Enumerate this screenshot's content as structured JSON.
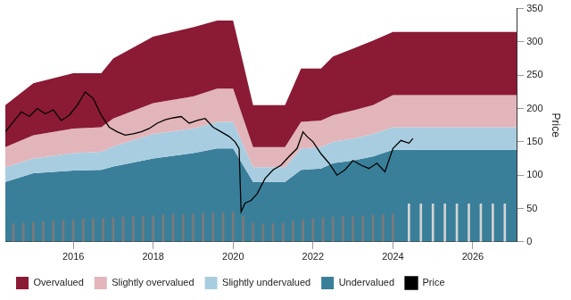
{
  "chart_data": {
    "type": "line",
    "y_label": "Price",
    "xlim": [
      2014.3,
      2027.1
    ],
    "xticks": [
      2016,
      2018,
      2020,
      2022,
      2024,
      2026
    ],
    "ylim": [
      0,
      350
    ],
    "yticks": [
      0,
      50,
      100,
      150,
      200,
      250,
      300,
      350
    ],
    "grid": false,
    "legend": "bottom-left",
    "series": [
      {
        "name": "Overvalued",
        "type": "area",
        "color": "#8b1a35",
        "x": [
          2014.3,
          2015.0,
          2016.0,
          2016.7,
          2017.0,
          2018.0,
          2019.0,
          2019.6,
          2020.0,
          2020.5,
          2021.3,
          2021.7,
          2022.2,
          2022.5,
          2023.0,
          2023.5,
          2024.0,
          2027.1
        ],
        "values": [
          205,
          238,
          253,
          253,
          275,
          308,
          322,
          332,
          332,
          205,
          205,
          260,
          260,
          278,
          290,
          302,
          315,
          315
        ]
      },
      {
        "name": "Slightly overvalued",
        "type": "area",
        "color": "#e2b5ba",
        "x": [
          2014.3,
          2015.0,
          2016.0,
          2016.7,
          2017.0,
          2018.0,
          2019.0,
          2019.6,
          2020.0,
          2020.5,
          2021.3,
          2021.7,
          2022.2,
          2022.5,
          2023.0,
          2023.5,
          2024.0,
          2027.1
        ],
        "values": [
          142,
          160,
          170,
          172,
          185,
          208,
          218,
          230,
          230,
          142,
          142,
          180,
          182,
          190,
          197,
          205,
          220,
          220
        ]
      },
      {
        "name": "Slightly undervalued",
        "type": "area",
        "color": "#a9cde0",
        "x": [
          2014.3,
          2015.0,
          2016.0,
          2016.7,
          2017.0,
          2018.0,
          2019.0,
          2019.6,
          2020.0,
          2020.5,
          2021.3,
          2021.7,
          2022.2,
          2022.5,
          2023.0,
          2023.5,
          2024.0,
          2027.1
        ],
        "values": [
          112,
          125,
          133,
          135,
          143,
          162,
          170,
          180,
          180,
          112,
          112,
          140,
          142,
          150,
          155,
          162,
          172,
          172
        ]
      },
      {
        "name": "Undervalued",
        "type": "area",
        "color": "#3a7f9a",
        "x": [
          2014.3,
          2015.0,
          2016.0,
          2016.7,
          2017.0,
          2018.0,
          2019.0,
          2019.6,
          2020.0,
          2020.5,
          2021.3,
          2021.7,
          2022.2,
          2022.5,
          2023.0,
          2023.5,
          2024.0,
          2027.1
        ],
        "values": [
          90,
          103,
          107,
          108,
          113,
          125,
          133,
          140,
          140,
          90,
          90,
          108,
          110,
          118,
          122,
          128,
          138,
          138
        ]
      },
      {
        "type": "bar",
        "color": "#7a7a7a",
        "x": [
          2014.5,
          2014.75,
          2015.0,
          2015.25,
          2015.5,
          2015.75,
          2016.0,
          2016.25,
          2016.5,
          2016.75,
          2017.0,
          2017.25,
          2017.5,
          2017.75,
          2018.0,
          2018.25,
          2018.5,
          2018.75,
          2019.0,
          2019.25,
          2019.5,
          2019.75,
          2020.0,
          2020.25,
          2020.5,
          2020.75,
          2021.0,
          2021.25,
          2021.5,
          2021.75,
          2022.0,
          2022.25,
          2022.5,
          2022.75,
          2023.0,
          2023.25,
          2023.5,
          2023.75,
          2024.0
        ],
        "values": [
          27,
          28,
          29,
          30,
          31,
          32,
          33,
          34,
          35,
          35,
          36,
          37,
          38,
          38,
          39,
          40,
          41,
          41,
          42,
          43,
          44,
          44,
          45,
          38,
          28,
          27,
          27,
          28,
          31,
          33,
          35,
          36,
          37,
          38,
          38,
          39,
          40,
          41,
          42
        ]
      },
      {
        "type": "bar",
        "color": "#d3d3d3",
        "x": [
          2024.4,
          2024.7,
          2025.0,
          2025.3,
          2025.6,
          2025.9,
          2026.2,
          2026.5,
          2026.8
        ],
        "values": [
          57,
          57,
          57,
          57,
          57,
          57,
          57,
          57,
          57
        ]
      },
      {
        "name": "Price",
        "type": "line",
        "color": "#000000",
        "x": [
          2014.3,
          2014.5,
          2014.7,
          2014.9,
          2015.1,
          2015.3,
          2015.5,
          2015.7,
          2015.9,
          2016.1,
          2016.3,
          2016.5,
          2016.7,
          2016.9,
          2017.1,
          2017.3,
          2017.5,
          2017.7,
          2017.9,
          2018.1,
          2018.3,
          2018.5,
          2018.7,
          2018.9,
          2019.1,
          2019.3,
          2019.5,
          2019.7,
          2019.9,
          2020.05,
          2020.15,
          2020.2,
          2020.3,
          2020.45,
          2020.6,
          2020.8,
          2021.0,
          2021.2,
          2021.4,
          2021.6,
          2021.75,
          2021.85,
          2022.0,
          2022.2,
          2022.4,
          2022.6,
          2022.8,
          2023.0,
          2023.2,
          2023.4,
          2023.6,
          2023.8,
          2024.0,
          2024.2,
          2024.4,
          2024.5
        ],
        "values": [
          165,
          180,
          195,
          188,
          200,
          192,
          198,
          182,
          190,
          205,
          225,
          215,
          190,
          172,
          165,
          160,
          162,
          165,
          170,
          178,
          183,
          186,
          188,
          178,
          182,
          185,
          172,
          165,
          158,
          150,
          140,
          45,
          58,
          62,
          72,
          95,
          108,
          115,
          128,
          140,
          165,
          158,
          150,
          132,
          118,
          100,
          108,
          122,
          115,
          110,
          118,
          105,
          140,
          152,
          148,
          155
        ]
      }
    ]
  }
}
